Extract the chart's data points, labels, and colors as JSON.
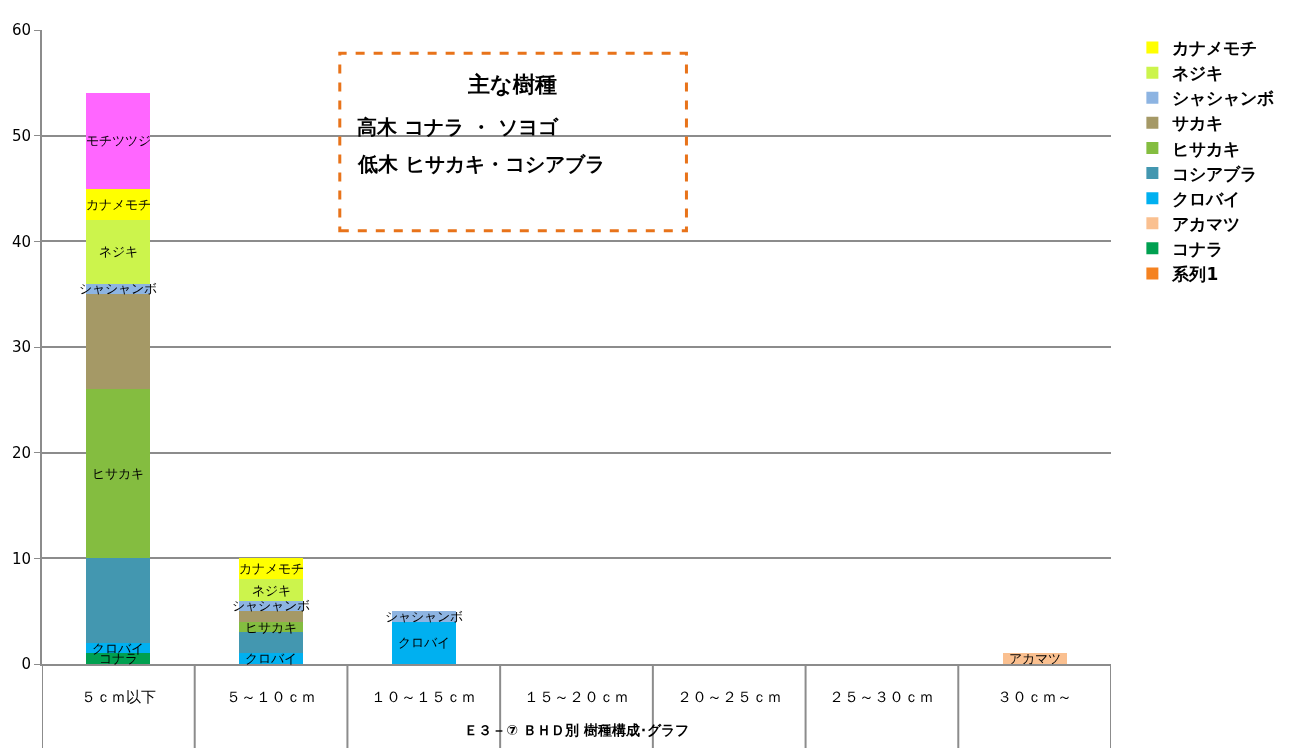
{
  "chart_data": {
    "type": "bar",
    "stacked": true,
    "categories": [
      "５ｃｍ以下",
      "５～１０ｃｍ",
      "１０～１５ｃｍ",
      "１５～２０ｃｍ",
      "２０～２５ｃｍ",
      "２５～３０ｃｍ",
      "３０ｃｍ～"
    ],
    "xlabel": "Ｅ３－⑦ ＢＨＤ別 樹種構成･グラフ",
    "ylim": [
      0,
      60
    ],
    "yticks": [
      0,
      10,
      20,
      30,
      40,
      50,
      60
    ],
    "grid": "y",
    "legend": "right",
    "annotations": [
      "主な樹種",
      "高木 コナラ ・ ソヨゴ",
      "低木 ヒサカキ・コシアブラ"
    ],
    "series": [
      {
        "name": "系列1",
        "color": "#f58220",
        "values": [
          null,
          null,
          null,
          null,
          null,
          null,
          null
        ]
      },
      {
        "name": "コナラ",
        "color": "#00a050",
        "values": [
          1,
          null,
          null,
          null,
          null,
          null,
          null
        ],
        "value_labels": [
          "コナラ",
          null,
          null,
          null,
          null,
          null,
          null
        ]
      },
      {
        "name": "アカマツ",
        "color": "#fac090",
        "values": [
          null,
          null,
          null,
          null,
          null,
          null,
          1
        ],
        "value_labels": [
          null,
          null,
          null,
          null,
          null,
          null,
          "アカマツ"
        ]
      },
      {
        "name": "クロバイ",
        "color": "#00b0f0",
        "values": [
          1,
          1,
          4,
          null,
          null,
          null,
          null
        ],
        "value_labels": [
          "クロバイ",
          "クロバイ",
          "クロバイ",
          null,
          null,
          null,
          null
        ]
      },
      {
        "name": "コシアブラ",
        "color": "#4397b0",
        "values": [
          8,
          2,
          null,
          null,
          null,
          null,
          null
        ]
      },
      {
        "name": "ヒサカキ",
        "color": "#84bd40",
        "values": [
          16,
          1,
          null,
          null,
          null,
          null,
          null
        ],
        "value_labels": [
          "ヒサカキ",
          "ヒサカキ",
          null,
          null,
          null,
          null,
          null
        ]
      },
      {
        "name": "サカキ",
        "color": "#a59966",
        "values": [
          9,
          1,
          null,
          null,
          null,
          null,
          null
        ]
      },
      {
        "name": "シャシャンボ",
        "color": "#8db4e2",
        "values": [
          1,
          1,
          1,
          null,
          null,
          null,
          null
        ],
        "value_labels": [
          "シャシャンボ",
          "シャシャンボ",
          "シャシャンボ",
          null,
          null,
          null,
          null
        ]
      },
      {
        "name": "ネジキ",
        "color": "#ccf44c",
        "values": [
          6,
          2,
          null,
          null,
          null,
          null,
          null
        ],
        "value_labels": [
          "ネジキ",
          "ネジキ",
          null,
          null,
          null,
          null,
          null
        ]
      },
      {
        "name": "カナメモチ",
        "color": "#ffff00",
        "values": [
          3,
          2,
          null,
          null,
          null,
          null,
          null
        ],
        "value_labels": [
          "カナメモチ",
          "カナメモチ",
          null,
          null,
          null,
          null,
          null
        ]
      },
      {
        "color": "#ff66ff",
        "values": [
          9,
          null,
          null,
          null,
          null,
          null,
          null
        ],
        "value_labels": [
          "モチツツジ",
          null,
          null,
          null,
          null,
          null,
          null
        ]
      }
    ]
  }
}
